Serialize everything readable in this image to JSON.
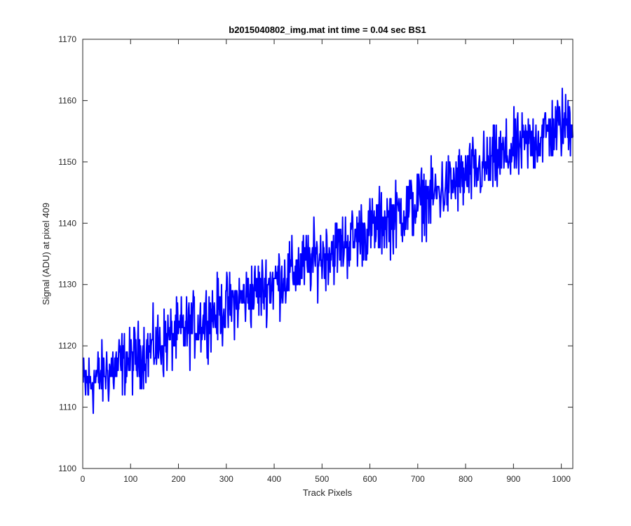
{
  "figure": {
    "background": "#ffffff"
  },
  "chart_data": {
    "type": "line",
    "title": "b2015040802_img.mat int time = 0.04 sec   BS1",
    "xlabel": "Track Pixels",
    "ylabel": "Signal (ADU) at pixel 409",
    "xlim": [
      0,
      1024
    ],
    "ylim": [
      1100,
      1170
    ],
    "xticks": [
      0,
      100,
      200,
      300,
      400,
      500,
      600,
      700,
      800,
      900,
      1000
    ],
    "yticks": [
      1100,
      1110,
      1120,
      1130,
      1140,
      1150,
      1160,
      1170
    ],
    "xtick_labels": [
      "0",
      "100",
      "200",
      "300",
      "400",
      "500",
      "600",
      "700",
      "800",
      "900",
      "1000"
    ],
    "ytick_labels": [
      "1100",
      "1110",
      "1120",
      "1130",
      "1140",
      "1150",
      "1160",
      "1170"
    ],
    "grid": false,
    "box": true,
    "series": [
      {
        "color": "#0000ff",
        "line_width": 2,
        "x_start": 1,
        "x_step": 1,
        "count": 1024,
        "trend_start": 1113.5,
        "trend_end": 1157,
        "noise_range": 6,
        "values_min": 1107,
        "values_max": 1169
      }
    ]
  }
}
